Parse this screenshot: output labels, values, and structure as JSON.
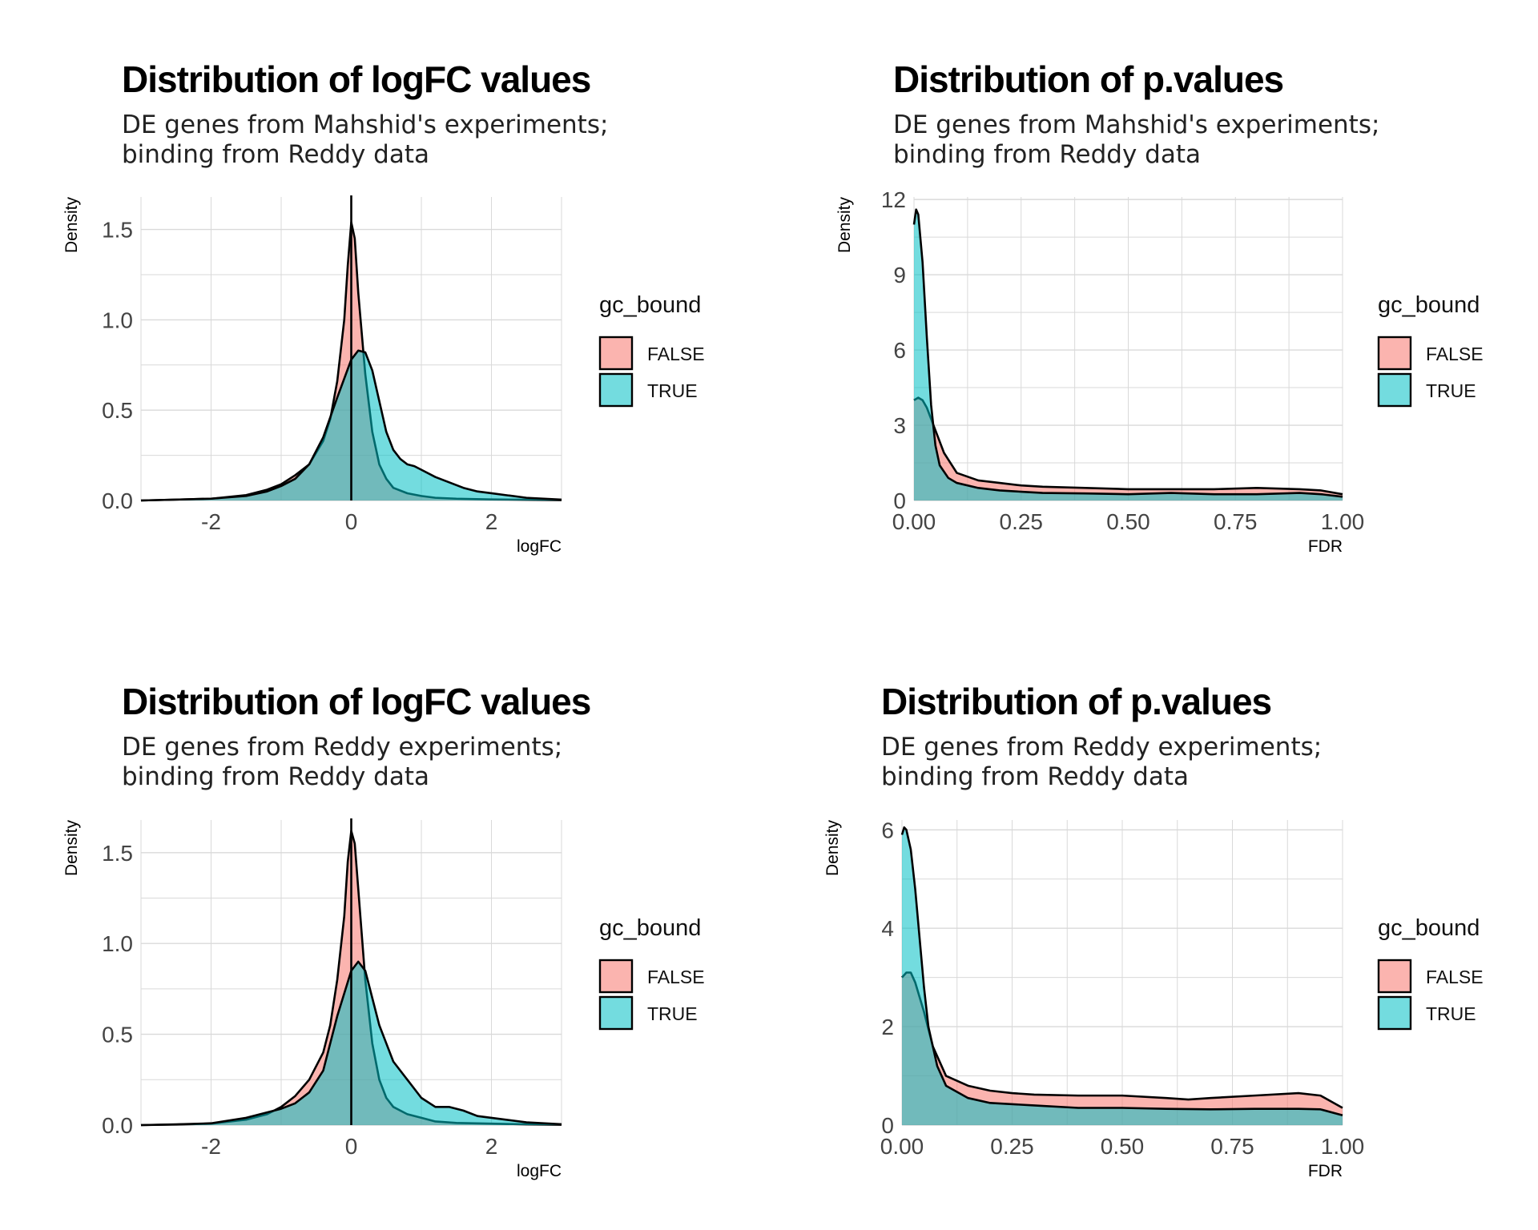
{
  "colors": {
    "false_fill": "#F8766D",
    "true_fill": "#00BFC4",
    "grid": "#d9d9d9",
    "outline": "#000000"
  },
  "chart_data": [
    {
      "type": "area",
      "title": "Distribution of logFC values",
      "subtitle": [
        "DE genes from Mahshid's experiments;",
        "binding from Reddy data"
      ],
      "xlabel": "logFC",
      "ylabel": "Density",
      "xlim": [
        -3,
        3
      ],
      "ylim": [
        0,
        1.68
      ],
      "xticks": [
        -2,
        0,
        2
      ],
      "xtick_labels": [
        "-2",
        "0",
        "2"
      ],
      "yticks": [
        0,
        0.5,
        1.0,
        1.5
      ],
      "ytick_labels": [
        "0.0",
        "0.5",
        "1.0",
        "1.5"
      ],
      "vline": 0,
      "legend": {
        "title": "gc_bound",
        "entries": [
          "FALSE",
          "TRUE"
        ],
        "position": "right"
      },
      "grid": true,
      "series": [
        {
          "name": "FALSE",
          "x": [
            -3,
            -2.5,
            -2,
            -1.5,
            -1.2,
            -1,
            -0.8,
            -0.6,
            -0.4,
            -0.3,
            -0.2,
            -0.1,
            -0.05,
            0,
            0.05,
            0.1,
            0.2,
            0.3,
            0.4,
            0.5,
            0.6,
            0.8,
            1,
            1.2,
            1.5,
            2,
            2.5,
            3
          ],
          "y": [
            0,
            0.005,
            0.01,
            0.03,
            0.06,
            0.09,
            0.14,
            0.2,
            0.33,
            0.45,
            0.66,
            1.0,
            1.3,
            1.54,
            1.45,
            1.15,
            0.7,
            0.38,
            0.2,
            0.12,
            0.07,
            0.04,
            0.025,
            0.015,
            0.01,
            0.006,
            0.004,
            0.002
          ]
        },
        {
          "name": "TRUE",
          "x": [
            -3,
            -2.5,
            -2,
            -1.5,
            -1.2,
            -1,
            -0.8,
            -0.6,
            -0.4,
            -0.2,
            0,
            0.1,
            0.2,
            0.3,
            0.4,
            0.5,
            0.6,
            0.7,
            0.8,
            0.9,
            1,
            1.2,
            1.4,
            1.6,
            1.8,
            2,
            2.2,
            2.5,
            3
          ],
          "y": [
            0,
            0.005,
            0.01,
            0.025,
            0.05,
            0.08,
            0.12,
            0.2,
            0.35,
            0.57,
            0.78,
            0.83,
            0.82,
            0.72,
            0.55,
            0.38,
            0.28,
            0.23,
            0.2,
            0.19,
            0.17,
            0.13,
            0.1,
            0.07,
            0.05,
            0.04,
            0.03,
            0.015,
            0.005
          ]
        }
      ]
    },
    {
      "type": "area",
      "title": "Distribution of p.values",
      "subtitle": [
        "DE genes from Mahshid's experiments;",
        "binding from Reddy data"
      ],
      "xlabel": "FDR",
      "ylabel": "Density",
      "xlim": [
        0,
        1
      ],
      "ylim": [
        0,
        12.1
      ],
      "xticks": [
        0,
        0.25,
        0.5,
        0.75,
        1
      ],
      "xtick_labels": [
        "0.00",
        "0.25",
        "0.50",
        "0.75",
        "1.00"
      ],
      "yticks": [
        0,
        3,
        6,
        9,
        12
      ],
      "ytick_labels": [
        "0",
        "3",
        "6",
        "9",
        "12"
      ],
      "legend": {
        "title": "gc_bound",
        "entries": [
          "FALSE",
          "TRUE"
        ],
        "position": "right"
      },
      "grid": true,
      "series": [
        {
          "name": "FALSE",
          "x": [
            0,
            0.01,
            0.02,
            0.03,
            0.05,
            0.07,
            0.1,
            0.15,
            0.2,
            0.25,
            0.3,
            0.4,
            0.5,
            0.6,
            0.7,
            0.8,
            0.9,
            0.95,
            1
          ],
          "y": [
            4.0,
            4.1,
            4.0,
            3.7,
            2.8,
            1.9,
            1.1,
            0.8,
            0.7,
            0.6,
            0.55,
            0.5,
            0.45,
            0.45,
            0.45,
            0.5,
            0.45,
            0.4,
            0.25
          ]
        },
        {
          "name": "TRUE",
          "x": [
            0,
            0.005,
            0.01,
            0.02,
            0.03,
            0.04,
            0.05,
            0.06,
            0.08,
            0.1,
            0.15,
            0.2,
            0.25,
            0.3,
            0.4,
            0.5,
            0.6,
            0.7,
            0.8,
            0.9,
            0.95,
            1
          ],
          "y": [
            11.0,
            11.6,
            11.4,
            9.5,
            6.5,
            3.8,
            2.2,
            1.4,
            0.9,
            0.7,
            0.5,
            0.4,
            0.35,
            0.3,
            0.28,
            0.25,
            0.3,
            0.25,
            0.25,
            0.3,
            0.25,
            0.15
          ]
        }
      ]
    },
    {
      "type": "area",
      "title": "Distribution of logFC values",
      "subtitle": [
        "DE genes from Reddy experiments;",
        "binding from Reddy data"
      ],
      "xlabel": "logFC",
      "ylabel": "Density",
      "xlim": [
        -3,
        3
      ],
      "ylim": [
        0,
        1.68
      ],
      "xticks": [
        -2,
        0,
        2
      ],
      "xtick_labels": [
        "-2",
        "0",
        "2"
      ],
      "yticks": [
        0,
        0.5,
        1.0,
        1.5
      ],
      "ytick_labels": [
        "0.0",
        "0.5",
        "1.0",
        "1.5"
      ],
      "vline": 0,
      "legend": {
        "title": "gc_bound",
        "entries": [
          "FALSE",
          "TRUE"
        ],
        "position": "right"
      },
      "grid": true,
      "series": [
        {
          "name": "FALSE",
          "x": [
            -3,
            -2.5,
            -2,
            -1.5,
            -1.2,
            -1,
            -0.8,
            -0.6,
            -0.4,
            -0.3,
            -0.2,
            -0.1,
            -0.05,
            0,
            0.05,
            0.1,
            0.2,
            0.3,
            0.4,
            0.5,
            0.6,
            0.8,
            1,
            1.2,
            1.5,
            2,
            2.5,
            3
          ],
          "y": [
            0,
            0.003,
            0.008,
            0.03,
            0.06,
            0.1,
            0.16,
            0.25,
            0.4,
            0.55,
            0.8,
            1.15,
            1.45,
            1.62,
            1.55,
            1.3,
            0.8,
            0.45,
            0.25,
            0.15,
            0.1,
            0.06,
            0.04,
            0.02,
            0.012,
            0.008,
            0.004,
            0.002
          ]
        },
        {
          "name": "TRUE",
          "x": [
            -3,
            -2.5,
            -2,
            -1.5,
            -1.2,
            -1,
            -0.8,
            -0.6,
            -0.4,
            -0.2,
            0,
            0.1,
            0.2,
            0.3,
            0.4,
            0.5,
            0.6,
            0.8,
            1,
            1.2,
            1.4,
            1.6,
            1.8,
            2,
            2.2,
            2.5,
            3
          ],
          "y": [
            0,
            0.004,
            0.01,
            0.04,
            0.07,
            0.09,
            0.12,
            0.18,
            0.3,
            0.6,
            0.85,
            0.9,
            0.85,
            0.7,
            0.55,
            0.45,
            0.35,
            0.25,
            0.15,
            0.1,
            0.1,
            0.08,
            0.05,
            0.04,
            0.03,
            0.015,
            0.005
          ]
        }
      ]
    },
    {
      "type": "area",
      "title": "Distribution of p.values",
      "subtitle": [
        "DE genes from Reddy experiments;",
        "binding from Reddy data"
      ],
      "xlabel": "FDR",
      "ylabel": "Density",
      "xlim": [
        0,
        1
      ],
      "ylim": [
        0,
        6.2
      ],
      "xticks": [
        0,
        0.25,
        0.5,
        0.75,
        1
      ],
      "xtick_labels": [
        "0.00",
        "0.25",
        "0.50",
        "0.75",
        "1.00"
      ],
      "yticks": [
        0,
        2,
        4,
        6
      ],
      "ytick_labels": [
        "0",
        "2",
        "4",
        "6"
      ],
      "legend": {
        "title": "gc_bound",
        "entries": [
          "FALSE",
          "TRUE"
        ],
        "position": "right"
      },
      "grid": true,
      "series": [
        {
          "name": "FALSE",
          "x": [
            0,
            0.01,
            0.02,
            0.03,
            0.05,
            0.07,
            0.1,
            0.15,
            0.2,
            0.25,
            0.3,
            0.4,
            0.5,
            0.6,
            0.65,
            0.7,
            0.8,
            0.9,
            0.95,
            1
          ],
          "y": [
            3.0,
            3.1,
            3.1,
            2.9,
            2.3,
            1.6,
            1.0,
            0.8,
            0.7,
            0.65,
            0.62,
            0.6,
            0.6,
            0.55,
            0.52,
            0.55,
            0.6,
            0.65,
            0.6,
            0.35
          ]
        },
        {
          "name": "TRUE",
          "x": [
            0,
            0.005,
            0.01,
            0.02,
            0.03,
            0.04,
            0.05,
            0.06,
            0.08,
            0.1,
            0.15,
            0.2,
            0.3,
            0.4,
            0.5,
            0.6,
            0.7,
            0.8,
            0.9,
            0.95,
            1
          ],
          "y": [
            5.9,
            6.05,
            6.0,
            5.6,
            4.8,
            3.8,
            2.8,
            2.0,
            1.2,
            0.8,
            0.55,
            0.45,
            0.4,
            0.35,
            0.35,
            0.33,
            0.32,
            0.33,
            0.33,
            0.32,
            0.2
          ]
        }
      ]
    }
  ]
}
